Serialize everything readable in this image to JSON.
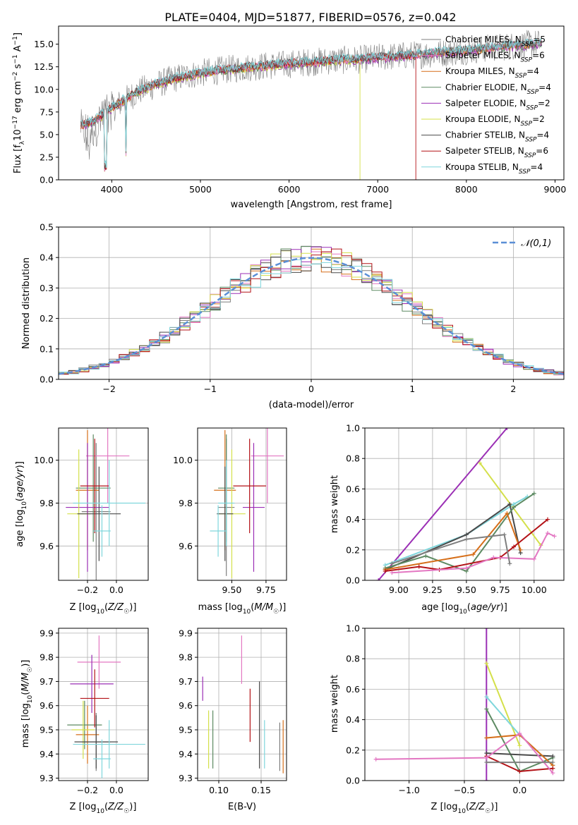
{
  "figure_title": "PLATE=0404, MJD=51877, FIBERID=0576, z=0.042",
  "models": [
    {
      "name": "Chabrier MILES",
      "color": "#7f7f7f",
      "nssp": 5
    },
    {
      "name": "Salpeter MILES",
      "color": "#e377c2",
      "nssp": 6
    },
    {
      "name": "Kroupa MILES",
      "color": "#d66f1a",
      "nssp": 4
    },
    {
      "name": "Chabrier ELODIE",
      "color": "#5d8a62",
      "nssp": 4
    },
    {
      "name": "Salpeter ELODIE",
      "color": "#9b2fb5",
      "nssp": 2
    },
    {
      "name": "Kroupa ELODIE",
      "color": "#d4e04a",
      "nssp": 2
    },
    {
      "name": "Chabrier STELIB",
      "color": "#4a4a4a",
      "nssp": 4
    },
    {
      "name": "Salpeter STELIB",
      "color": "#b31217",
      "nssp": 6
    },
    {
      "name": "Kroupa STELIB",
      "color": "#7fd6dc",
      "nssp": 4
    }
  ],
  "chart_data": [
    {
      "id": "spectrum",
      "type": "line",
      "xlabel": "wavelength [Angstrom, rest frame]",
      "ylabel": "Flux [f_λ10^{-17} erg cm^{-2} s^{-1} A^{-1}]",
      "xlim": [
        3400,
        9100
      ],
      "ylim": [
        0,
        17
      ],
      "xticks": [
        4000,
        5000,
        6000,
        7000,
        8000,
        9000
      ],
      "yticks": [
        0.0,
        2.5,
        5.0,
        7.5,
        10.0,
        12.5,
        15.0
      ],
      "legend_position": "right",
      "data_series": {
        "name": "",
        "color": "#808080",
        "x": [
          3650,
          3750,
          3850,
          3950,
          4100,
          4300,
          4500,
          4700,
          5000,
          5300,
          5600,
          5900,
          6200,
          6500,
          6800,
          7100,
          7400,
          7700,
          8000,
          8300,
          8600,
          8850
        ],
        "y": [
          5.5,
          4.0,
          6.5,
          7.5,
          8.5,
          9.8,
          10.5,
          11.2,
          11.8,
          12.2,
          12.5,
          12.7,
          13.0,
          13.2,
          13.3,
          13.6,
          13.8,
          14.0,
          14.3,
          14.6,
          14.9,
          15.1
        ]
      },
      "model_x": [
        3650,
        3800,
        3950,
        4100,
        4300,
        4500,
        4700,
        5000,
        5300,
        5600,
        5900,
        6200,
        6500,
        6800,
        7100,
        7400,
        7700,
        8000,
        8300,
        8600,
        8850
      ],
      "model_y": [
        6.0,
        6.5,
        7.6,
        8.6,
        9.8,
        10.6,
        11.2,
        11.8,
        12.2,
        12.5,
        12.8,
        13.0,
        13.2,
        13.4,
        13.6,
        13.8,
        14.1,
        14.3,
        14.6,
        14.9,
        15.1
      ]
    },
    {
      "id": "residuals",
      "type": "histogram",
      "xlabel": "(data-model)/error",
      "ylabel": "Normed distribution",
      "xlim": [
        -2.5,
        2.5
      ],
      "ylim": [
        0,
        0.5
      ],
      "xticks": [
        -2,
        -1,
        0,
        1,
        2
      ],
      "yticks": [
        0.0,
        0.1,
        0.2,
        0.3,
        0.4,
        0.5
      ],
      "grid": true,
      "legend": "𝒩(0,1)",
      "legend_position": "top-right",
      "bin_edges_range": [
        -2.5,
        2.5
      ],
      "bin_count": 50
    },
    {
      "id": "age-vs-Z",
      "type": "errorbar",
      "xlabel": "Z [log10(Z/Z☉)]",
      "ylabel": "age  [log10(age/yr)]",
      "xlim": [
        -0.4,
        0.22
      ],
      "ylim": [
        9.44,
        10.15
      ],
      "xticks": [
        -0.2,
        0.0
      ],
      "yticks": [
        9.6,
        9.8,
        10.0
      ],
      "grid": true,
      "points": [
        {
          "model": "Chabrier MILES",
          "x": -0.14,
          "xerr": 0.1,
          "y": 9.76,
          "yerr": 0.32
        },
        {
          "model": "Salpeter MILES",
          "x": -0.06,
          "xerr": 0.15,
          "y": 10.02,
          "yerr": 0.22
        },
        {
          "model": "Kroupa MILES",
          "x": -0.2,
          "xerr": 0.08,
          "y": 9.86,
          "yerr": 0.28
        },
        {
          "model": "Chabrier ELODIE",
          "x": -0.16,
          "xerr": 0.12,
          "y": 9.87,
          "yerr": 0.25
        },
        {
          "model": "Salpeter ELODIE",
          "x": -0.2,
          "xerr": 0.15,
          "y": 9.78,
          "yerr": 0.3
        },
        {
          "model": "Kroupa ELODIE",
          "x": -0.26,
          "xerr": 0.08,
          "y": 9.75,
          "yerr": 0.3
        },
        {
          "model": "Chabrier STELIB",
          "x": -0.12,
          "xerr": 0.15,
          "y": 9.75,
          "yerr": 0.22
        },
        {
          "model": "Salpeter STELIB",
          "x": -0.15,
          "xerr": 0.1,
          "y": 9.88,
          "yerr": 0.22
        },
        {
          "model": "Kroupa STELIB",
          "x": -0.05,
          "xerr": 0.25,
          "y": 9.8,
          "yerr": 0.2
        },
        {
          "model": "Kroupa STELIB",
          "x": -0.1,
          "xerr": 0.06,
          "y": 9.67,
          "yerr": 0.12
        }
      ]
    },
    {
      "id": "age-vs-mass",
      "type": "errorbar",
      "xlabel": "mass [log10(M/M☉)]",
      "ylabel": "",
      "xlim": [
        9.25,
        9.9
      ],
      "ylim": [
        9.44,
        10.15
      ],
      "xticks": [
        9.5,
        9.75
      ],
      "yticks": [
        9.6,
        9.8,
        10.0
      ],
      "grid": true,
      "points": [
        {
          "model": "Chabrier MILES",
          "x": 9.46,
          "xerr": 0.06,
          "y": 9.78,
          "yerr": 0.32
        },
        {
          "model": "Salpeter MILES",
          "x": 9.76,
          "xerr": 0.12,
          "y": 10.02,
          "yerr": 0.22
        },
        {
          "model": "Kroupa MILES",
          "x": 9.45,
          "xerr": 0.08,
          "y": 9.86,
          "yerr": 0.28
        },
        {
          "model": "Chabrier ELODIE",
          "x": 9.46,
          "xerr": 0.06,
          "y": 9.87,
          "yerr": 0.25
        },
        {
          "model": "Salpeter ELODIE",
          "x": 9.66,
          "xerr": 0.08,
          "y": 9.78,
          "yerr": 0.3
        },
        {
          "model": "Kroupa ELODIE",
          "x": 9.5,
          "xerr": 0.1,
          "y": 9.75,
          "yerr": 0.3
        },
        {
          "model": "Chabrier STELIB",
          "x": 9.45,
          "xerr": 0.06,
          "y": 9.75,
          "yerr": 0.22
        },
        {
          "model": "Salpeter STELIB",
          "x": 9.63,
          "xerr": 0.12,
          "y": 9.88,
          "yerr": 0.22
        },
        {
          "model": "Kroupa STELIB",
          "x": 9.46,
          "xerr": 0.06,
          "y": 9.8,
          "yerr": 0.2
        },
        {
          "model": "Kroupa STELIB",
          "x": 9.4,
          "xerr": 0.06,
          "y": 9.67,
          "yerr": 0.12
        }
      ]
    },
    {
      "id": "weights-vs-age",
      "type": "line",
      "xlabel": "age  [log10(age/yr)]",
      "ylabel": "mass weight",
      "xlim": [
        8.75,
        10.22
      ],
      "ylim": [
        0,
        1.0
      ],
      "xticks": [
        9.0,
        9.25,
        9.5,
        9.75,
        10.0
      ],
      "yticks": [
        0.0,
        0.2,
        0.4,
        0.6,
        0.8,
        1.0
      ],
      "grid": true,
      "series": [
        {
          "model": "Salpeter ELODIE",
          "x": [
            8.85,
            9.8
          ],
          "y": [
            0.0,
            1.0
          ]
        },
        {
          "model": "Kroupa ELODIE",
          "x": [
            9.6,
            10.05
          ],
          "y": [
            0.77,
            0.23
          ]
        },
        {
          "model": "Kroupa STELIB",
          "x": [
            8.9,
            9.5,
            9.85,
            9.95
          ],
          "y": [
            0.1,
            0.3,
            0.5,
            0.55
          ]
        },
        {
          "model": "Chabrier STELIB",
          "x": [
            8.9,
            9.5,
            9.82,
            9.9
          ],
          "y": [
            0.07,
            0.3,
            0.5,
            0.18
          ]
        },
        {
          "model": "Chabrier ELODIE",
          "x": [
            8.9,
            9.2,
            9.5,
            9.85,
            10.0
          ],
          "y": [
            0.08,
            0.16,
            0.06,
            0.48,
            0.57
          ]
        },
        {
          "model": "Kroupa MILES",
          "x": [
            8.9,
            9.55,
            9.8,
            9.9
          ],
          "y": [
            0.07,
            0.17,
            0.44,
            0.2
          ]
        },
        {
          "model": "Salpeter STELIB",
          "x": [
            8.9,
            9.15,
            9.3,
            9.75,
            9.85,
            10.1
          ],
          "y": [
            0.06,
            0.09,
            0.07,
            0.15,
            0.22,
            0.4
          ]
        },
        {
          "model": "Salpeter MILES",
          "x": [
            8.95,
            9.5,
            9.7,
            10.0,
            10.1,
            10.15
          ],
          "y": [
            0.05,
            0.08,
            0.15,
            0.14,
            0.31,
            0.29
          ]
        },
        {
          "model": "Chabrier MILES",
          "x": [
            8.95,
            9.5,
            9.78,
            9.82
          ],
          "y": [
            0.11,
            0.27,
            0.3,
            0.11
          ]
        }
      ]
    },
    {
      "id": "mass-vs-Z",
      "type": "errorbar",
      "xlabel": "Z [log10(Z/Z☉)]",
      "ylabel": "mass [log10(M/M☉)]",
      "xlim": [
        -0.4,
        0.22
      ],
      "ylim": [
        9.29,
        9.92
      ],
      "xticks": [
        -0.2,
        0.0
      ],
      "yticks": [
        9.3,
        9.4,
        9.5,
        9.6,
        9.7,
        9.8,
        9.9
      ],
      "grid": true,
      "points": [
        {
          "model": "Chabrier MILES",
          "x": -0.14,
          "xerr": 0.1,
          "y": 9.45,
          "yerr": 0.12
        },
        {
          "model": "Salpeter MILES",
          "x": -0.12,
          "xerr": 0.15,
          "y": 9.78,
          "yerr": 0.11
        },
        {
          "model": "Kroupa MILES",
          "x": -0.2,
          "xerr": 0.08,
          "y": 9.48,
          "yerr": 0.12
        },
        {
          "model": "Chabrier ELODIE",
          "x": -0.22,
          "xerr": 0.12,
          "y": 9.52,
          "yerr": 0.1
        },
        {
          "model": "Salpeter ELODIE",
          "x": -0.17,
          "xerr": 0.15,
          "y": 9.69,
          "yerr": 0.12
        },
        {
          "model": "Kroupa ELODIE",
          "x": -0.23,
          "xerr": 0.08,
          "y": 9.5,
          "yerr": 0.12
        },
        {
          "model": "Chabrier STELIB",
          "x": -0.14,
          "xerr": 0.15,
          "y": 9.45,
          "yerr": 0.11
        },
        {
          "model": "Salpeter STELIB",
          "x": -0.15,
          "xerr": 0.1,
          "y": 9.63,
          "yerr": 0.12
        },
        {
          "model": "Kroupa STELIB",
          "x": -0.05,
          "xerr": 0.25,
          "y": 9.44,
          "yerr": 0.1
        },
        {
          "model": "Kroupa STELIB",
          "x": -0.1,
          "xerr": 0.06,
          "y": 9.38,
          "yerr": 0.08
        }
      ]
    },
    {
      "id": "mass-vs-ebv",
      "type": "errorbar",
      "xlabel": "E(B-V)",
      "ylabel": "",
      "xlim": [
        0.075,
        0.18
      ],
      "ylim": [
        9.29,
        9.92
      ],
      "xticks": [
        0.1,
        0.15
      ],
      "yticks": [
        9.3,
        9.4,
        9.5,
        9.6,
        9.7,
        9.8,
        9.9
      ],
      "grid": true,
      "points": [
        {
          "model": "Salpeter ELODIE",
          "x": 0.081,
          "y": 9.67,
          "yerr": 0.05
        },
        {
          "model": "Kroupa ELODIE",
          "x": 0.088,
          "y": 9.46,
          "yerr": 0.12
        },
        {
          "model": "Chabrier ELODIE",
          "x": 0.093,
          "y": 9.46,
          "yerr": 0.12
        },
        {
          "model": "Salpeter MILES",
          "x": 0.127,
          "y": 9.79,
          "yerr": 0.1
        },
        {
          "model": "Salpeter STELIB",
          "x": 0.137,
          "y": 9.56,
          "yerr": 0.11
        },
        {
          "model": "Chabrier STELIB",
          "x": 0.148,
          "y": 9.52,
          "yerr": 0.18
        },
        {
          "model": "Kroupa STELIB",
          "x": 0.154,
          "y": 9.44,
          "yerr": 0.1
        },
        {
          "model": "Chabrier MILES",
          "x": 0.172,
          "y": 9.43,
          "yerr": 0.1
        },
        {
          "model": "Kroupa MILES",
          "x": 0.176,
          "y": 9.43,
          "yerr": 0.11
        }
      ]
    },
    {
      "id": "weights-vs-Z",
      "type": "line",
      "xlabel": "Z [log10(Z/Z☉)]",
      "ylabel": "mass weight",
      "xlim": [
        -1.4,
        0.4
      ],
      "ylim": [
        0,
        1.0
      ],
      "xticks": [
        -1.0,
        -0.5,
        0.0
      ],
      "yticks": [
        0.0,
        0.2,
        0.4,
        0.6,
        0.8,
        1.0
      ],
      "grid": true,
      "series": [
        {
          "model": "Salpeter ELODIE",
          "x": [
            -0.3,
            -0.3
          ],
          "y": [
            0.0,
            1.0
          ]
        },
        {
          "model": "Kroupa ELODIE",
          "x": [
            -0.3,
            0.0
          ],
          "y": [
            0.77,
            0.23
          ]
        },
        {
          "model": "Kroupa STELIB",
          "x": [
            -0.3,
            0.0,
            0.3
          ],
          "y": [
            0.55,
            0.3,
            0.1
          ]
        },
        {
          "model": "Chabrier ELODIE",
          "x": [
            -0.3,
            0.0,
            0.3
          ],
          "y": [
            0.47,
            0.06,
            0.15
          ]
        },
        {
          "model": "Chabrier STELIB",
          "x": [
            -0.3,
            0.3
          ],
          "y": [
            0.18,
            0.16
          ]
        },
        {
          "model": "Kroupa MILES",
          "x": [
            -0.3,
            0.0,
            0.3
          ],
          "y": [
            0.28,
            0.3,
            0.1
          ]
        },
        {
          "model": "Salpeter STELIB",
          "x": [
            -0.3,
            0.0,
            0.3
          ],
          "y": [
            0.16,
            0.06,
            0.08
          ]
        },
        {
          "model": "Salpeter MILES",
          "x": [
            -1.3,
            -0.3,
            0.0,
            0.3
          ],
          "y": [
            0.14,
            0.15,
            0.31,
            0.05
          ]
        },
        {
          "model": "Chabrier MILES",
          "x": [
            -0.3,
            0.3
          ],
          "y": [
            0.12,
            0.12
          ]
        }
      ]
    }
  ]
}
